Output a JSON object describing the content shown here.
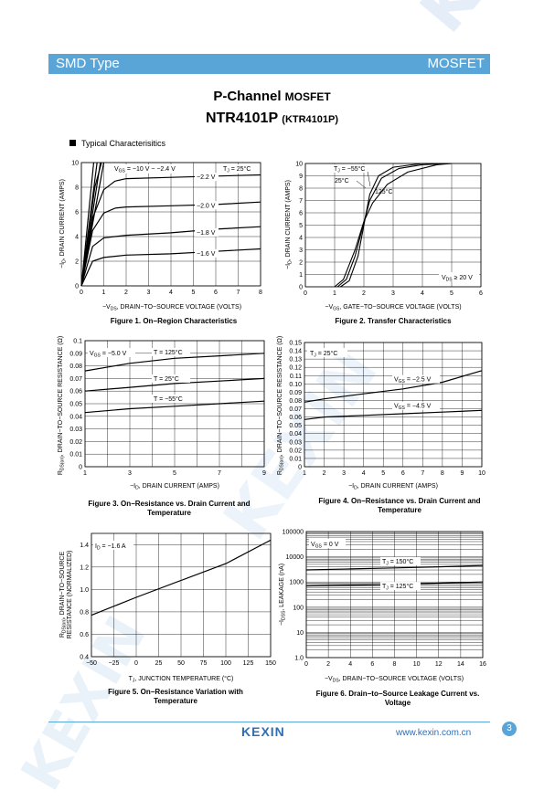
{
  "header": {
    "left": "SMD Type",
    "right": "MOSFET"
  },
  "watermark": "KEXIN",
  "title": {
    "line1": "P-Channel",
    "line1b": "MOSFET",
    "line2": "NTR4101P",
    "line2b": "(KTR4101P)"
  },
  "section": "Typical  Characterisitics",
  "fig1": {
    "caption": "Figure 1. On−Region Characteristics",
    "xlabel": "−V",
    "xlabel_sub": "DS",
    "xlabel_rest": ", DRAIN−TO−SOURCE VOLTAGE (VOLTS)",
    "ylabel": "−I",
    "ylabel_sub": "D",
    "ylabel_rest": ", DRAIN CURRENT (AMPS)",
    "xticks": [
      "0",
      "1",
      "2",
      "3",
      "4",
      "5",
      "6",
      "7",
      "8"
    ],
    "yticks": [
      "0",
      "2",
      "4",
      "6",
      "8",
      "10"
    ],
    "ann_vgs": "V",
    "ann_vgs_sub": "GS",
    "ann_vgs_rest": " = −10 V − −2.4 V",
    "ann_tj": "T",
    "ann_tj_sub": "J",
    "ann_tj_rest": " = 25°C",
    "curves": [
      "−2.2 V",
      "−2.0 V",
      "−1.8 V",
      "−1.6 V"
    ]
  },
  "fig2": {
    "caption": "Figure 2. Transfer Characteristics",
    "xlabel": "−V",
    "xlabel_sub": "GS",
    "xlabel_rest": ", GATE−TO−SOURCE VOLTAGE (VOLTS)",
    "ylabel": "−I",
    "ylabel_sub": "D",
    "ylabel_rest": ", DRAIN CURRENT (AMPS)",
    "xticks": [
      "0",
      "1",
      "2",
      "3",
      "4",
      "5",
      "6"
    ],
    "yticks": [
      "0",
      "1",
      "2",
      "3",
      "4",
      "5",
      "6",
      "7",
      "8",
      "9",
      "10"
    ],
    "ann_tj": "T",
    "ann_tj_sub": "J",
    "ann_tj_rest": " = −55°C",
    "ann_25": "25°C",
    "ann_125": "125°C",
    "ann_vds": "V",
    "ann_vds_sub": "DS",
    "ann_vds_rest": " ≥ 20 V"
  },
  "fig3": {
    "caption": "Figure 3. On−Resistance vs. Drain Current and Temperature",
    "xlabel": "−I",
    "xlabel_sub": "D",
    "xlabel_rest": ", DRAIN CURRENT (AMPS)",
    "ylabel": "R",
    "ylabel_sub": "DS(on)",
    "ylabel_rest": ", DRAIN−TO−SOURCE RESISTANCE (Ω)",
    "xticks": [
      "1",
      "3",
      "5",
      "7",
      "9"
    ],
    "yticks": [
      "0",
      "0.01",
      "0.02",
      "0.03",
      "0.04",
      "0.05",
      "0.06",
      "0.07",
      "0.08",
      "0.09",
      "0.1"
    ],
    "ann_vgs": "V",
    "ann_vgs_sub": "GS",
    "ann_vgs_rest": " = −5.0 V",
    "curves": [
      "T = 125°C",
      "T = 25°C",
      "T = −55°C"
    ]
  },
  "fig4": {
    "caption": "Figure 4. On−Resistance vs. Drain Current and Temperature",
    "xlabel": "−I",
    "xlabel_sub": "D",
    "xlabel_rest": ", DRAIN CURRENT (AMPS)",
    "ylabel": "R",
    "ylabel_sub": "DS(on)",
    "ylabel_rest": ", DRAIN−TO−SOURCE RESISTANCE (Ω)",
    "xticks": [
      "1",
      "2",
      "3",
      "4",
      "5",
      "6",
      "7",
      "8",
      "9",
      "10"
    ],
    "yticks": [
      "0",
      "0.01",
      "0.02",
      "0.03",
      "0.04",
      "0.05",
      "0.06",
      "0.07",
      "0.08",
      "0.09",
      "0.10",
      "0.11",
      "0.12",
      "0.13",
      "0.14",
      "0.15"
    ],
    "ann_tj": "T",
    "ann_tj_sub": "J",
    "ann_tj_rest": " = 25°C",
    "curves": [
      "−2.5 V",
      "−4.5 V"
    ],
    "ann_vgs": "V",
    "ann_vgs_sub": "GS",
    "ann_vgs_eq": " = "
  },
  "fig5": {
    "caption": "Figure 5. On−Resistance Variation with Temperature",
    "xlabel": "T",
    "xlabel_sub": "J",
    "xlabel_rest": ", JUNCTION TEMPERATURE (°C)",
    "ylabel1": "R",
    "ylabel1_sub": "DS(on)",
    "ylabel1_rest": ", DRAIN−TO−SOURCE",
    "ylabel2": "RESISTANCE (NORMALIZED)",
    "xticks": [
      "−50",
      "−25",
      "0",
      "25",
      "50",
      "75",
      "100",
      "125",
      "150"
    ],
    "yticks": [
      "0.4",
      "0.6",
      "0.8",
      "1.0",
      "1.2",
      "1.4"
    ],
    "ann_id": "I",
    "ann_id_sub": "D",
    "ann_id_rest": " = −1.6 A"
  },
  "fig6": {
    "caption": "Figure 6. Drain−to−Source Leakage Current vs. Voltage",
    "xlabel": "−V",
    "xlabel_sub": "DS",
    "xlabel_rest": ", DRAIN−TO−SOURCE VOLTAGE (VOLTS)",
    "ylabel": "−I",
    "ylabel_sub": "DSS",
    "ylabel_rest": ", LEAKAGE (nA)",
    "xticks": [
      "0",
      "2",
      "4",
      "6",
      "8",
      "10",
      "12",
      "14",
      "16"
    ],
    "yticks": [
      "1.0",
      "10",
      "100",
      "1000",
      "10000",
      "100000"
    ],
    "ann_vgs": "V",
    "ann_vgs_sub": "GS",
    "ann_vgs_rest": " = 0 V",
    "curves": [
      "150°C",
      "125°C"
    ],
    "ann_tj": "T",
    "ann_tj_sub": "J",
    "ann_tj_eq": " = "
  },
  "chart_data": [
    {
      "type": "line",
      "series": [
        {
          "name": "−10 V − −2.4 V",
          "x": [
            0,
            0.3,
            0.6,
            0.9
          ],
          "y": [
            0,
            4,
            8,
            10
          ]
        },
        {
          "name": "−2.2 V",
          "x": [
            0,
            0.5,
            1,
            1.5,
            2,
            4,
            6,
            8
          ],
          "y": [
            0,
            5.5,
            7.8,
            8.5,
            8.7,
            8.8,
            8.9,
            9.0
          ]
        },
        {
          "name": "−2.0 V",
          "x": [
            0,
            0.5,
            1,
            1.5,
            2,
            4,
            6,
            8
          ],
          "y": [
            0,
            4.5,
            5.9,
            6.3,
            6.4,
            6.5,
            6.6,
            6.8
          ]
        },
        {
          "name": "−1.8 V",
          "x": [
            0,
            0.5,
            1,
            1.5,
            2,
            4,
            6,
            8
          ],
          "y": [
            0,
            3.2,
            3.9,
            4.0,
            4.1,
            4.3,
            4.6,
            4.8
          ]
        },
        {
          "name": "−1.6 V",
          "x": [
            0,
            0.5,
            1,
            1.5,
            2,
            4,
            6,
            8
          ],
          "y": [
            0,
            2.0,
            2.3,
            2.4,
            2.5,
            2.6,
            2.8,
            3.0
          ]
        }
      ],
      "xlim": [
        0,
        8
      ],
      "ylim": [
        0,
        10
      ]
    },
    {
      "type": "line",
      "series": [
        {
          "name": "−55°C",
          "x": [
            1.2,
            1.5,
            1.8,
            2.0,
            2.2,
            2.5,
            3,
            4,
            5
          ],
          "y": [
            0,
            0.5,
            2.5,
            5,
            7.5,
            9,
            9.7,
            10,
            10
          ]
        },
        {
          "name": "25°C",
          "x": [
            1.1,
            1.4,
            1.7,
            2.0,
            2.2,
            2.6,
            3.2,
            4,
            5
          ],
          "y": [
            0,
            0.6,
            2.5,
            5.2,
            7,
            8.8,
            9.6,
            9.9,
            10
          ]
        },
        {
          "name": "125°C",
          "x": [
            1.0,
            1.3,
            1.7,
            2.0,
            2.3,
            2.8,
            3.5,
            4.5,
            5
          ],
          "y": [
            0,
            0.6,
            3,
            5.3,
            6.8,
            8.3,
            9.3,
            9.9,
            10
          ]
        }
      ],
      "xlim": [
        0,
        6
      ],
      "ylim": [
        0,
        10
      ]
    },
    {
      "type": "line",
      "series": [
        {
          "name": "T = 125°C",
          "x": [
            1,
            3,
            5,
            7,
            9
          ],
          "y": [
            0.076,
            0.082,
            0.086,
            0.088,
            0.09
          ]
        },
        {
          "name": "T = 25°C",
          "x": [
            1,
            3,
            5,
            7,
            9
          ],
          "y": [
            0.06,
            0.063,
            0.066,
            0.068,
            0.07
          ]
        },
        {
          "name": "T = −55°C",
          "x": [
            1,
            3,
            5,
            7,
            9
          ],
          "y": [
            0.043,
            0.046,
            0.048,
            0.05,
            0.052
          ]
        }
      ],
      "xlim": [
        1,
        9
      ],
      "ylim": [
        0,
        0.1
      ]
    },
    {
      "type": "line",
      "series": [
        {
          "name": "−2.5 V",
          "x": [
            1,
            2,
            4,
            6,
            8,
            10
          ],
          "y": [
            0.078,
            0.082,
            0.088,
            0.094,
            0.102,
            0.116
          ]
        },
        {
          "name": "−4.5 V",
          "x": [
            1,
            2,
            4,
            6,
            8,
            10
          ],
          "y": [
            0.057,
            0.06,
            0.062,
            0.064,
            0.066,
            0.068
          ]
        }
      ],
      "xlim": [
        1,
        10
      ],
      "ylim": [
        0,
        0.15
      ]
    },
    {
      "type": "line",
      "series": [
        {
          "name": "I = −1.6 A",
          "x": [
            -50,
            0,
            50,
            100,
            150
          ],
          "y": [
            0.77,
            0.93,
            1.08,
            1.23,
            1.44
          ]
        }
      ],
      "xlim": [
        -50,
        150
      ],
      "ylim": [
        0.4,
        1.5
      ]
    },
    {
      "type": "line",
      "series": [
        {
          "name": "150°C",
          "x": [
            0,
            4,
            8,
            12,
            16
          ],
          "y": [
            3000,
            3300,
            3600,
            4000,
            4500
          ]
        },
        {
          "name": "125°C",
          "x": [
            0,
            4,
            8,
            12,
            16
          ],
          "y": [
            700,
            750,
            800,
            900,
            1000
          ]
        }
      ],
      "xlim": [
        0,
        16
      ],
      "ylim": [
        1,
        100000
      ],
      "yscale": "log"
    }
  ]
}
